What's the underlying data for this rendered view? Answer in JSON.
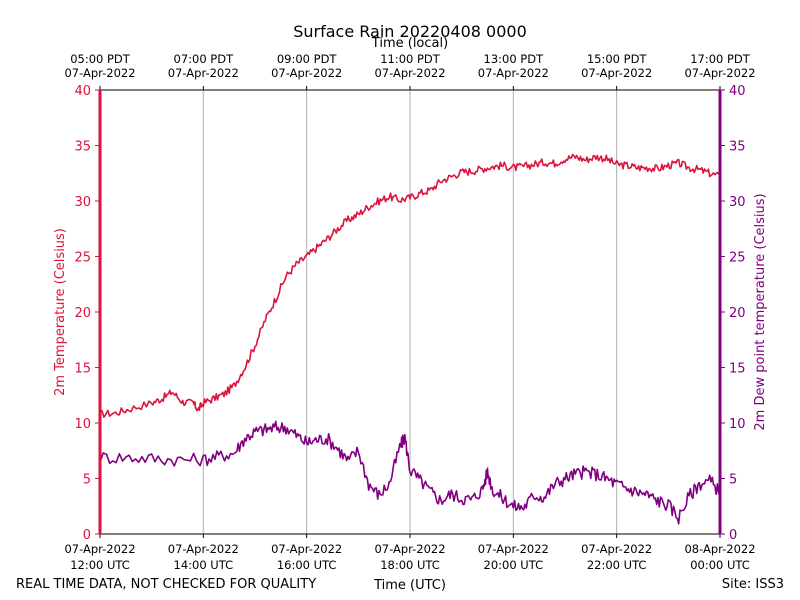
{
  "chart_data": {
    "type": "line",
    "title": "Surface Rain 20220408 0000",
    "top_axis_label": "Time (local)",
    "xlabel": "Time (UTC)",
    "ylabel_left": "2m Temperature (Celsius)",
    "ylabel_right": "2m Dew point temperature (Celsius)",
    "ylim": [
      0,
      40
    ],
    "y_ticks": [
      0,
      5,
      10,
      15,
      20,
      25,
      30,
      35,
      40
    ],
    "x_range_hours_utc": [
      12,
      24
    ],
    "x_tick_hours_utc": [
      12,
      14,
      16,
      18,
      20,
      22,
      24
    ],
    "bottom_tick_labels": [
      [
        "07-Apr-2022",
        "12:00 UTC"
      ],
      [
        "07-Apr-2022",
        "14:00 UTC"
      ],
      [
        "07-Apr-2022",
        "16:00 UTC"
      ],
      [
        "07-Apr-2022",
        "18:00 UTC"
      ],
      [
        "07-Apr-2022",
        "20:00 UTC"
      ],
      [
        "07-Apr-2022",
        "22:00 UTC"
      ],
      [
        "08-Apr-2022",
        "00:00 UTC"
      ]
    ],
    "top_tick_labels": [
      [
        "05:00 PDT",
        "07-Apr-2022"
      ],
      [
        "07:00 PDT",
        "07-Apr-2022"
      ],
      [
        "09:00 PDT",
        "07-Apr-2022"
      ],
      [
        "11:00 PDT",
        "07-Apr-2022"
      ],
      [
        "13:00 PDT",
        "07-Apr-2022"
      ],
      [
        "15:00 PDT",
        "07-Apr-2022"
      ],
      [
        "17:00 PDT",
        "07-Apr-2022"
      ]
    ],
    "grid": "vertical",
    "series": [
      {
        "name": "2m Temperature",
        "color": "#dc143c",
        "axis": "left",
        "x_hours_utc": [
          12.0,
          12.3,
          12.6,
          13.0,
          13.2,
          13.4,
          13.6,
          13.8,
          13.9,
          14.0,
          14.2,
          14.4,
          14.6,
          14.8,
          15.0,
          15.2,
          15.4,
          15.6,
          15.8,
          16.0,
          16.2,
          16.4,
          16.6,
          16.8,
          17.0,
          17.2,
          17.4,
          17.6,
          17.8,
          18.0,
          18.2,
          18.4,
          18.6,
          18.8,
          19.0,
          19.2,
          19.4,
          19.6,
          19.8,
          20.0,
          20.2,
          20.4,
          20.6,
          20.8,
          21.0,
          21.2,
          21.4,
          21.6,
          21.8,
          22.0,
          22.2,
          22.4,
          22.6,
          22.8,
          23.0,
          23.2,
          23.4,
          23.6,
          23.8,
          24.0
        ],
        "values": [
          10.8,
          10.9,
          11.3,
          11.8,
          12.2,
          12.8,
          11.9,
          11.8,
          11.2,
          11.8,
          12.2,
          12.6,
          13.4,
          15.0,
          17.0,
          19.3,
          21.2,
          23.2,
          24.3,
          25.0,
          25.8,
          26.6,
          27.5,
          28.3,
          28.8,
          29.5,
          30.0,
          30.4,
          30.1,
          30.3,
          30.7,
          31.0,
          31.8,
          32.2,
          32.6,
          32.7,
          32.9,
          33.1,
          33.2,
          33.0,
          33.1,
          33.3,
          33.5,
          33.4,
          33.8,
          34.0,
          33.7,
          34.0,
          33.8,
          33.3,
          33.2,
          33.0,
          33.0,
          32.9,
          33.2,
          33.4,
          33.0,
          32.8,
          32.5,
          32.2
        ]
      },
      {
        "name": "2m Dew point temperature",
        "color": "#800080",
        "axis": "right",
        "x_hours_utc": [
          12.0,
          12.5,
          13.0,
          13.5,
          14.0,
          14.3,
          14.6,
          14.8,
          15.0,
          15.2,
          15.4,
          15.6,
          15.8,
          16.0,
          16.2,
          16.4,
          16.6,
          16.8,
          17.0,
          17.2,
          17.4,
          17.6,
          17.8,
          17.9,
          18.0,
          18.2,
          18.4,
          18.6,
          18.8,
          19.0,
          19.2,
          19.4,
          19.5,
          19.6,
          19.8,
          20.0,
          20.2,
          20.4,
          20.6,
          20.8,
          21.0,
          21.2,
          21.4,
          21.6,
          21.8,
          22.0,
          22.2,
          22.4,
          22.6,
          22.8,
          23.0,
          23.2,
          23.4,
          23.6,
          23.8,
          24.0
        ],
        "values": [
          6.9,
          6.9,
          6.8,
          6.7,
          6.7,
          7.0,
          7.3,
          8.6,
          9.2,
          9.4,
          9.6,
          9.6,
          8.9,
          8.2,
          8.5,
          8.6,
          7.7,
          6.6,
          7.5,
          4.5,
          3.5,
          4.5,
          7.8,
          8.7,
          5.8,
          4.8,
          3.8,
          3.0,
          3.6,
          3.2,
          3.1,
          4.0,
          5.6,
          4.0,
          3.2,
          2.5,
          2.4,
          3.5,
          3.3,
          4.5,
          5.0,
          5.4,
          5.6,
          5.4,
          5.0,
          4.5,
          4.1,
          3.8,
          3.5,
          3.0,
          2.6,
          1.5,
          3.4,
          4.5,
          4.8,
          3.8
        ]
      }
    ]
  },
  "footer": {
    "left_note": "REAL TIME DATA, NOT CHECKED FOR QUALITY",
    "site": "Site: ISS3"
  }
}
